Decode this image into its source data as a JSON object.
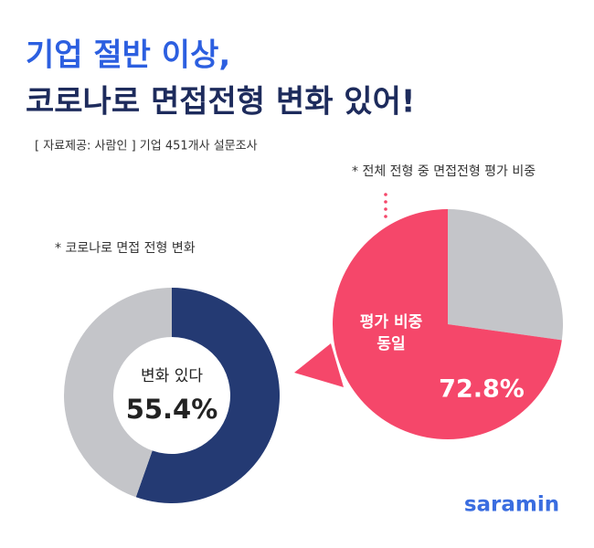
{
  "header": {
    "title_line1": "기업 절반 이상,",
    "title_line2": "코로나로 면접전형 변화 있어!",
    "source": "[ 자료제공: 사람인 ] 기업 451개사 설문조사"
  },
  "chart_data": [
    {
      "type": "donut",
      "title": "* 코로나로 면접 전형 변화",
      "categories": [
        "변화 있다",
        null
      ],
      "values": [
        55.4,
        44.6
      ],
      "value_labels": [
        "55.4%",
        null
      ],
      "colors": [
        "#243a73",
        "#c4c5c9"
      ]
    },
    {
      "type": "pie",
      "title": "* 전체 전형 중 면접전형 평가 비중",
      "categories": [
        null,
        "평가 비중 동일"
      ],
      "values": [
        27.2,
        72.8
      ],
      "value_labels": [
        null,
        "72.8%"
      ],
      "colors": [
        "#c4c5c9",
        "#f5476a"
      ]
    }
  ],
  "logo": "saramin"
}
